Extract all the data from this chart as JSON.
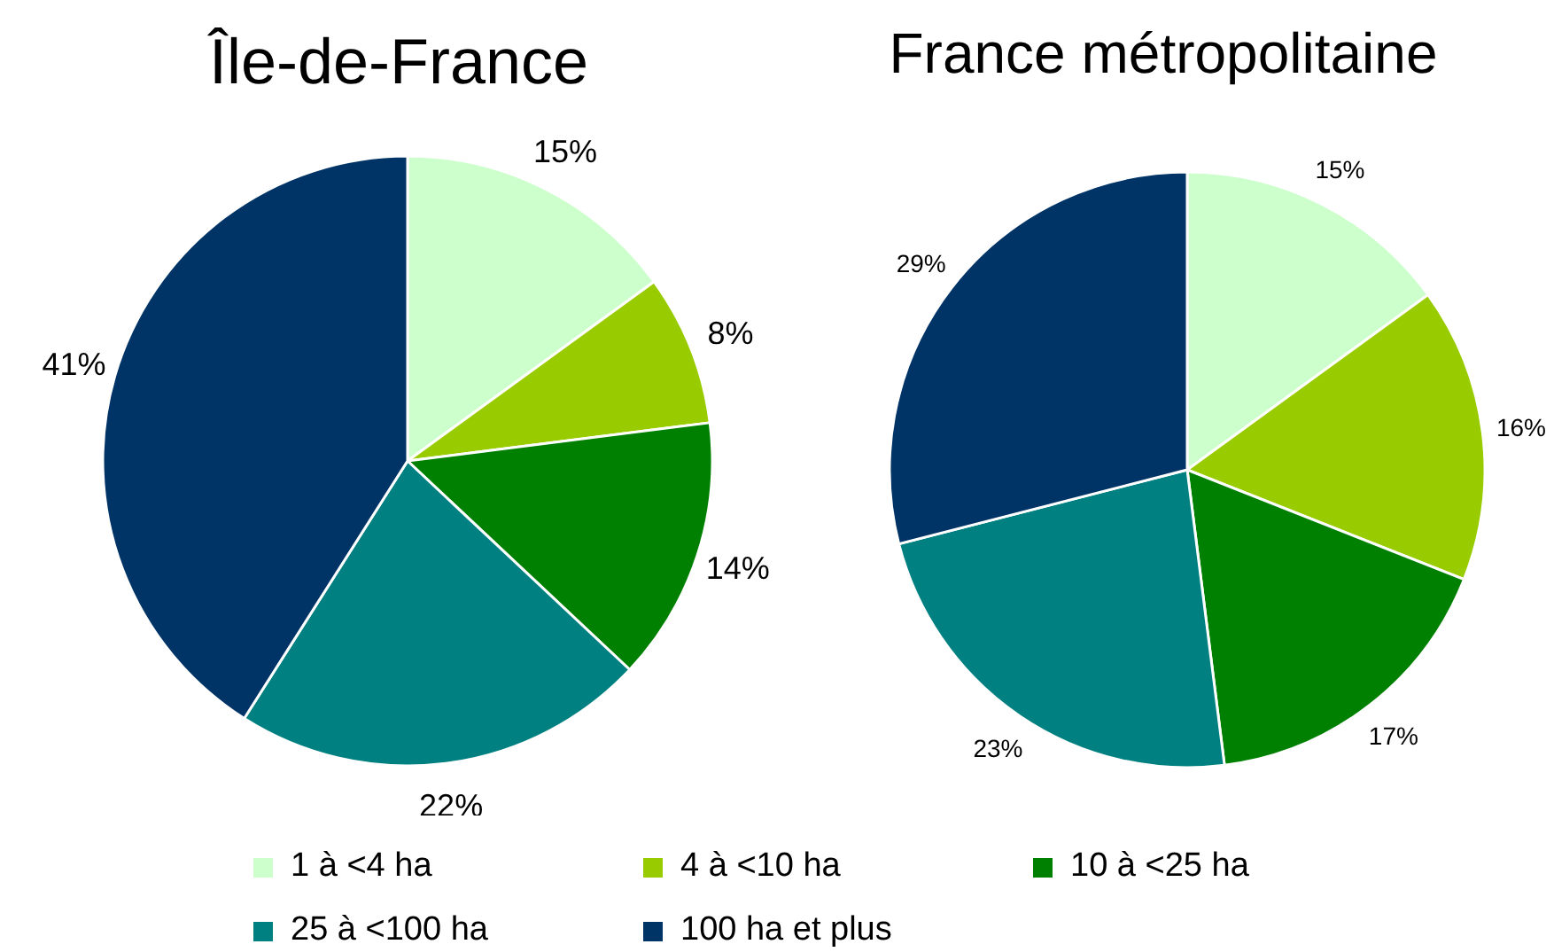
{
  "chart_data": [
    {
      "type": "pie",
      "title": "Île-de-France",
      "categories": [
        "1 à <4 ha",
        "4 à <10 ha",
        "10 à <25 ha",
        "25 à <100 ha",
        "100 ha et plus"
      ],
      "values": [
        15,
        8,
        14,
        22,
        41
      ],
      "value_labels": [
        "15%",
        "8%",
        "14%",
        "22%",
        "41%"
      ],
      "colors": [
        "#ccffcc",
        "#99cc00",
        "#008000",
        "#008080",
        "#003366"
      ],
      "legend": "bottom"
    },
    {
      "type": "pie",
      "title": "France métropolitaine",
      "values": [
        15,
        16,
        17,
        23,
        29
      ],
      "value_labels": [
        "15%",
        "16%",
        "17%",
        "23%",
        "29%"
      ],
      "colors": [
        "#ccffcc",
        "#99cc00",
        "#008000",
        "#008080",
        "#003366"
      ]
    }
  ]
}
